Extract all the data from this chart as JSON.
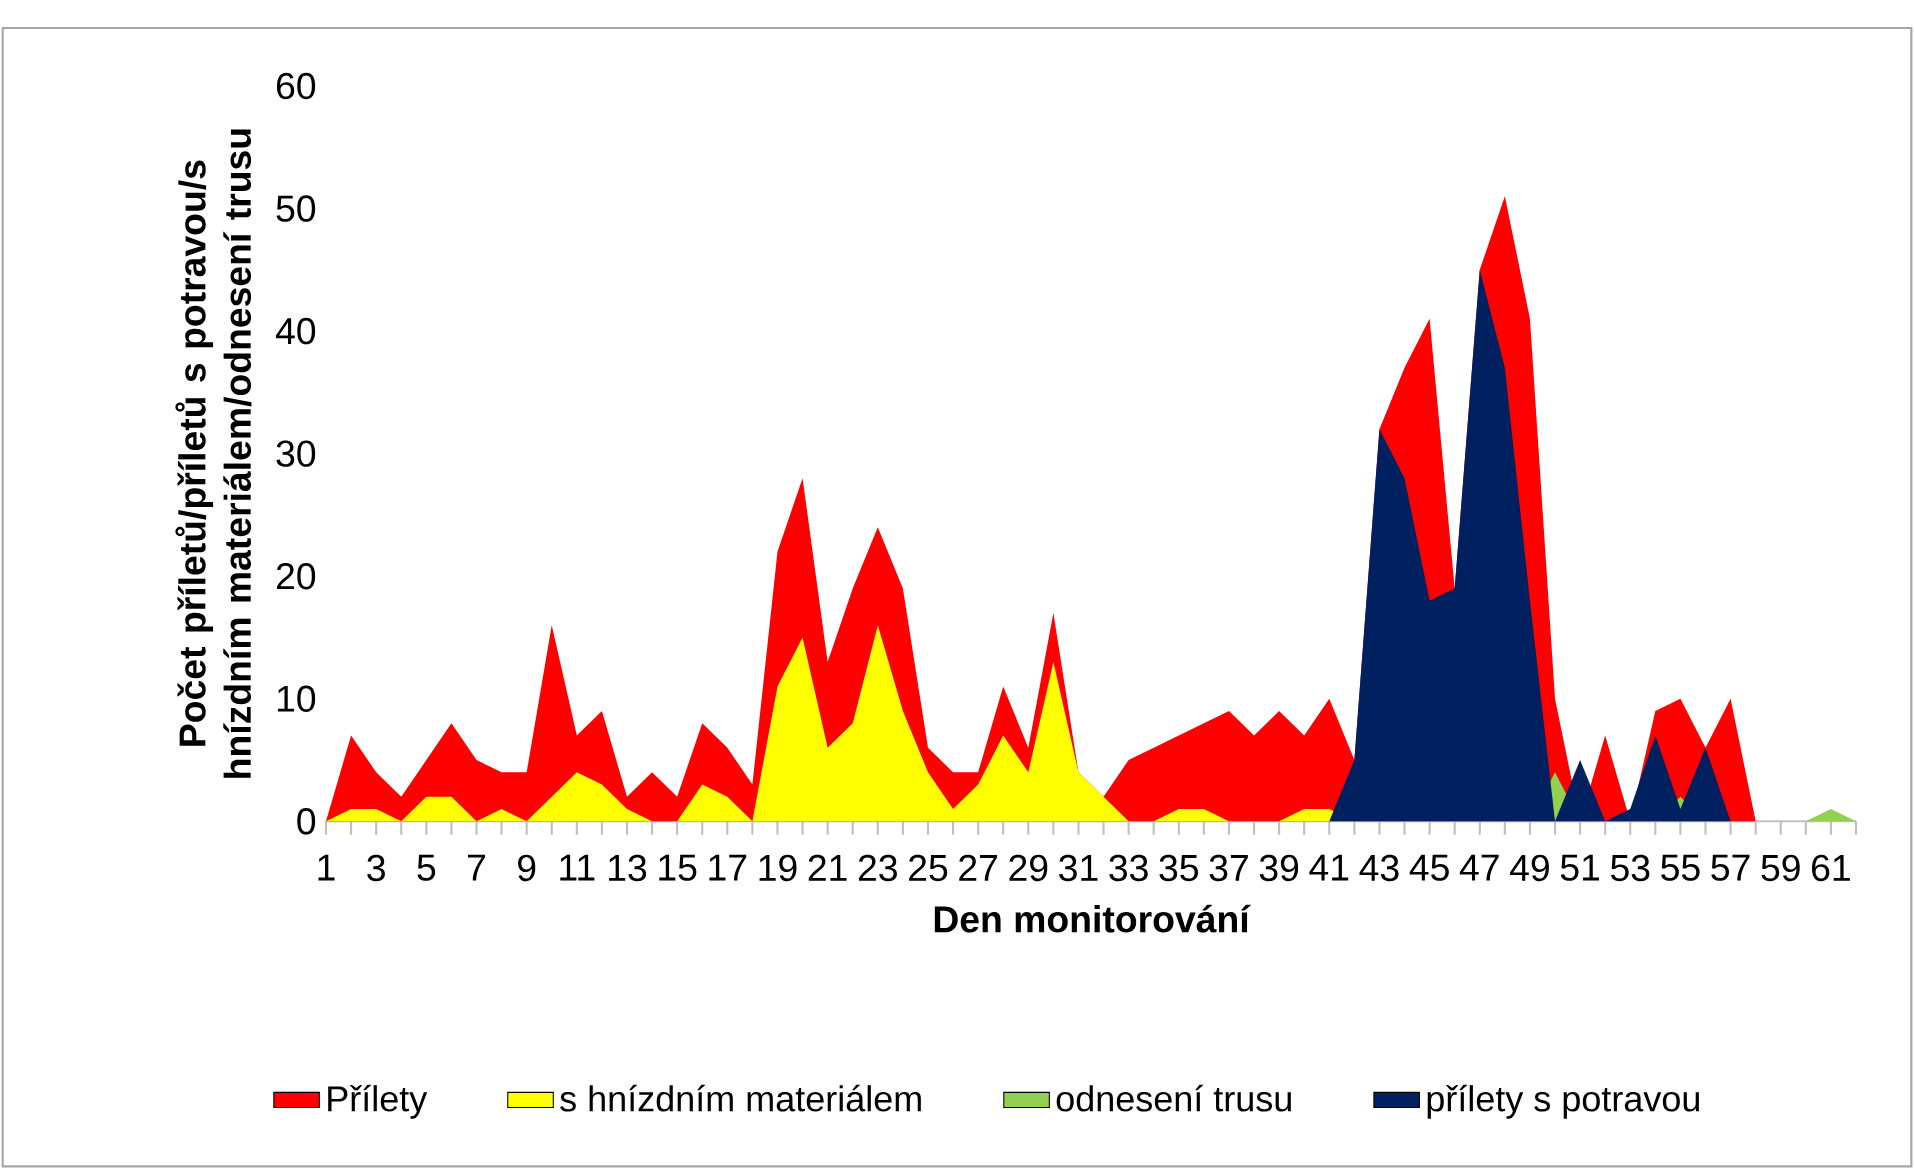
{
  "chart_data": {
    "type": "area",
    "xlabel": "Den monitorování",
    "ylabel": "Počet příletů/příletů s potravou/s hnízdním materiálem/odnesení trusu",
    "categories": [
      "1",
      null,
      "3",
      null,
      "5",
      null,
      "7",
      null,
      "9",
      null,
      "11",
      null,
      "13",
      null,
      "15",
      null,
      "17",
      null,
      "19",
      null,
      "21",
      null,
      "23",
      null,
      "25",
      null,
      "27",
      null,
      "29",
      null,
      "31",
      null,
      "33",
      null,
      "35",
      null,
      "37",
      null,
      "39",
      null,
      "41",
      null,
      "43",
      null,
      "45",
      null,
      "47",
      null,
      "49",
      null,
      "51",
      null,
      "53",
      null,
      "55",
      null,
      "57",
      null,
      "59",
      null,
      "61",
      null
    ],
    "ylim": [
      0,
      60
    ],
    "yticks": [
      0,
      10,
      20,
      30,
      40,
      50,
      60
    ],
    "legend": "bottom",
    "series": [
      {
        "name": "Přílety",
        "color": "#ff0000",
        "values": [
          0,
          7,
          4,
          2,
          5,
          8,
          5,
          4,
          4,
          16,
          7,
          9,
          2,
          4,
          2,
          8,
          6,
          3,
          22,
          28,
          13,
          19,
          24,
          19,
          6,
          4,
          4,
          11,
          6,
          17,
          4,
          2,
          5,
          6,
          7,
          8,
          9,
          7,
          9,
          7,
          10,
          5,
          32,
          37,
          41,
          19,
          45,
          51,
          41,
          10,
          0,
          7,
          0,
          9,
          10,
          6,
          10,
          0,
          0,
          0,
          0,
          0
        ]
      },
      {
        "name": "s hnízdním materiálem",
        "color": "#ffff00",
        "values": [
          0,
          1,
          1,
          0,
          2,
          2,
          0,
          1,
          0,
          2,
          4,
          3,
          1,
          0,
          0,
          3,
          2,
          0,
          11,
          15,
          6,
          8,
          16,
          9,
          4,
          1,
          3,
          7,
          4,
          13,
          4,
          2,
          0,
          0,
          1,
          1,
          0,
          0,
          0,
          1,
          1,
          0,
          0,
          0,
          0,
          0,
          0,
          0,
          0,
          0,
          0,
          0,
          0,
          0,
          0,
          0,
          0,
          0,
          0,
          0,
          0,
          0
        ]
      },
      {
        "name": "odnesení trusu",
        "color": "#92d050",
        "values": [
          0,
          0,
          0,
          0,
          0,
          0,
          0,
          0,
          0,
          0,
          0,
          0,
          0,
          0,
          0,
          0,
          0,
          0,
          0,
          0,
          0,
          0,
          0,
          0,
          0,
          0,
          0,
          0,
          0,
          0,
          0,
          0,
          0,
          0,
          0,
          0,
          0,
          0,
          0,
          0,
          0,
          0,
          0,
          0,
          0,
          0,
          0,
          0,
          0,
          4,
          0,
          0,
          0,
          0,
          2,
          0,
          0,
          0,
          0,
          0,
          1,
          0
        ]
      },
      {
        "name": "přílety s potravou",
        "color": "#002060",
        "values": [
          0,
          0,
          0,
          0,
          0,
          0,
          0,
          0,
          0,
          0,
          0,
          0,
          0,
          0,
          0,
          0,
          0,
          0,
          0,
          0,
          0,
          0,
          0,
          0,
          0,
          0,
          0,
          0,
          0,
          0,
          0,
          0,
          0,
          0,
          0,
          0,
          0,
          0,
          0,
          0,
          0,
          5,
          32,
          28,
          18,
          19,
          45,
          37,
          18,
          0,
          5,
          0,
          1,
          7,
          1,
          6,
          0,
          0,
          0,
          0,
          0,
          0
        ]
      }
    ]
  }
}
